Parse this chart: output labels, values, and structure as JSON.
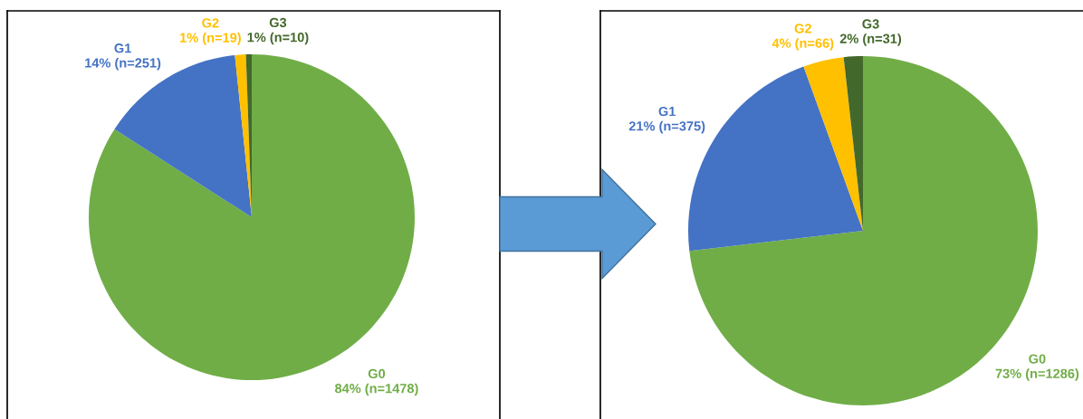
{
  "chart_data": [
    {
      "type": "pie",
      "categories": [
        "G0",
        "G1",
        "G2",
        "G3"
      ],
      "values": [
        1478,
        251,
        19,
        10
      ],
      "colors": [
        "#70ad47",
        "#4472c4",
        "#ffc000",
        "#43682b"
      ],
      "value_labels": [
        "84% (n=1478)",
        "14% (n=251)",
        "1% (n=19)",
        "1% (n=10)"
      ]
    },
    {
      "type": "pie",
      "categories": [
        "G0",
        "G1",
        "G2",
        "G3"
      ],
      "values": [
        1286,
        375,
        66,
        31
      ],
      "colors": [
        "#70ad47",
        "#4472c4",
        "#ffc000",
        "#43682b"
      ],
      "value_labels": [
        "73% (n=1286)",
        "21% (n=375)",
        "4% (n=66)",
        "2% (n=31)"
      ]
    }
  ]
}
